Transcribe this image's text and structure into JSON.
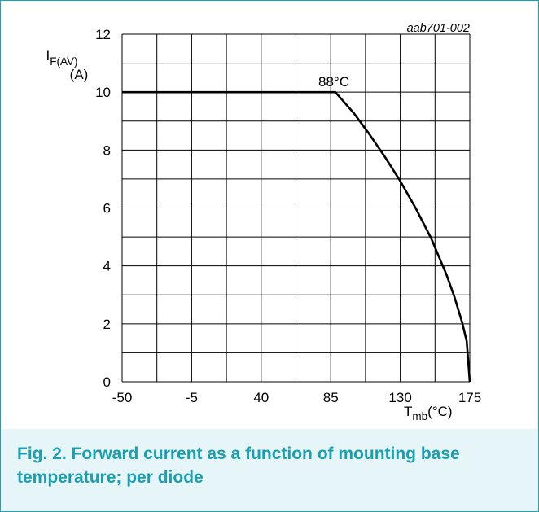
{
  "chart_data": {
    "type": "line",
    "code": "aab701-002",
    "ylabel_main": "I",
    "ylabel_sub": "F(AV)",
    "ylabel_unit": "(A)",
    "xlabel_main": "T",
    "xlabel_sub": "mb",
    "xlabel_unit": "(°C)",
    "x_ticks": [
      -50,
      -5,
      40,
      85,
      130,
      175
    ],
    "y_ticks": [
      0,
      2,
      4,
      6,
      8,
      10,
      12
    ],
    "xlim": [
      -50,
      175
    ],
    "ylim": [
      0,
      12
    ],
    "grid": true,
    "annotation": {
      "text": "88°C",
      "x": 88,
      "y": 10
    },
    "series": [
      {
        "x": [
          -50,
          88,
          100,
          110,
          120,
          130,
          140,
          150,
          160,
          165,
          170,
          173,
          175
        ],
        "y": [
          10,
          10,
          9.27,
          8.55,
          7.77,
          6.93,
          5.99,
          4.95,
          3.69,
          2.94,
          2.06,
          1.4,
          0
        ]
      }
    ]
  },
  "caption": {
    "line1": "Fig. 2. Forward current as a function of mounting base",
    "line2": "temperature; per diode"
  }
}
